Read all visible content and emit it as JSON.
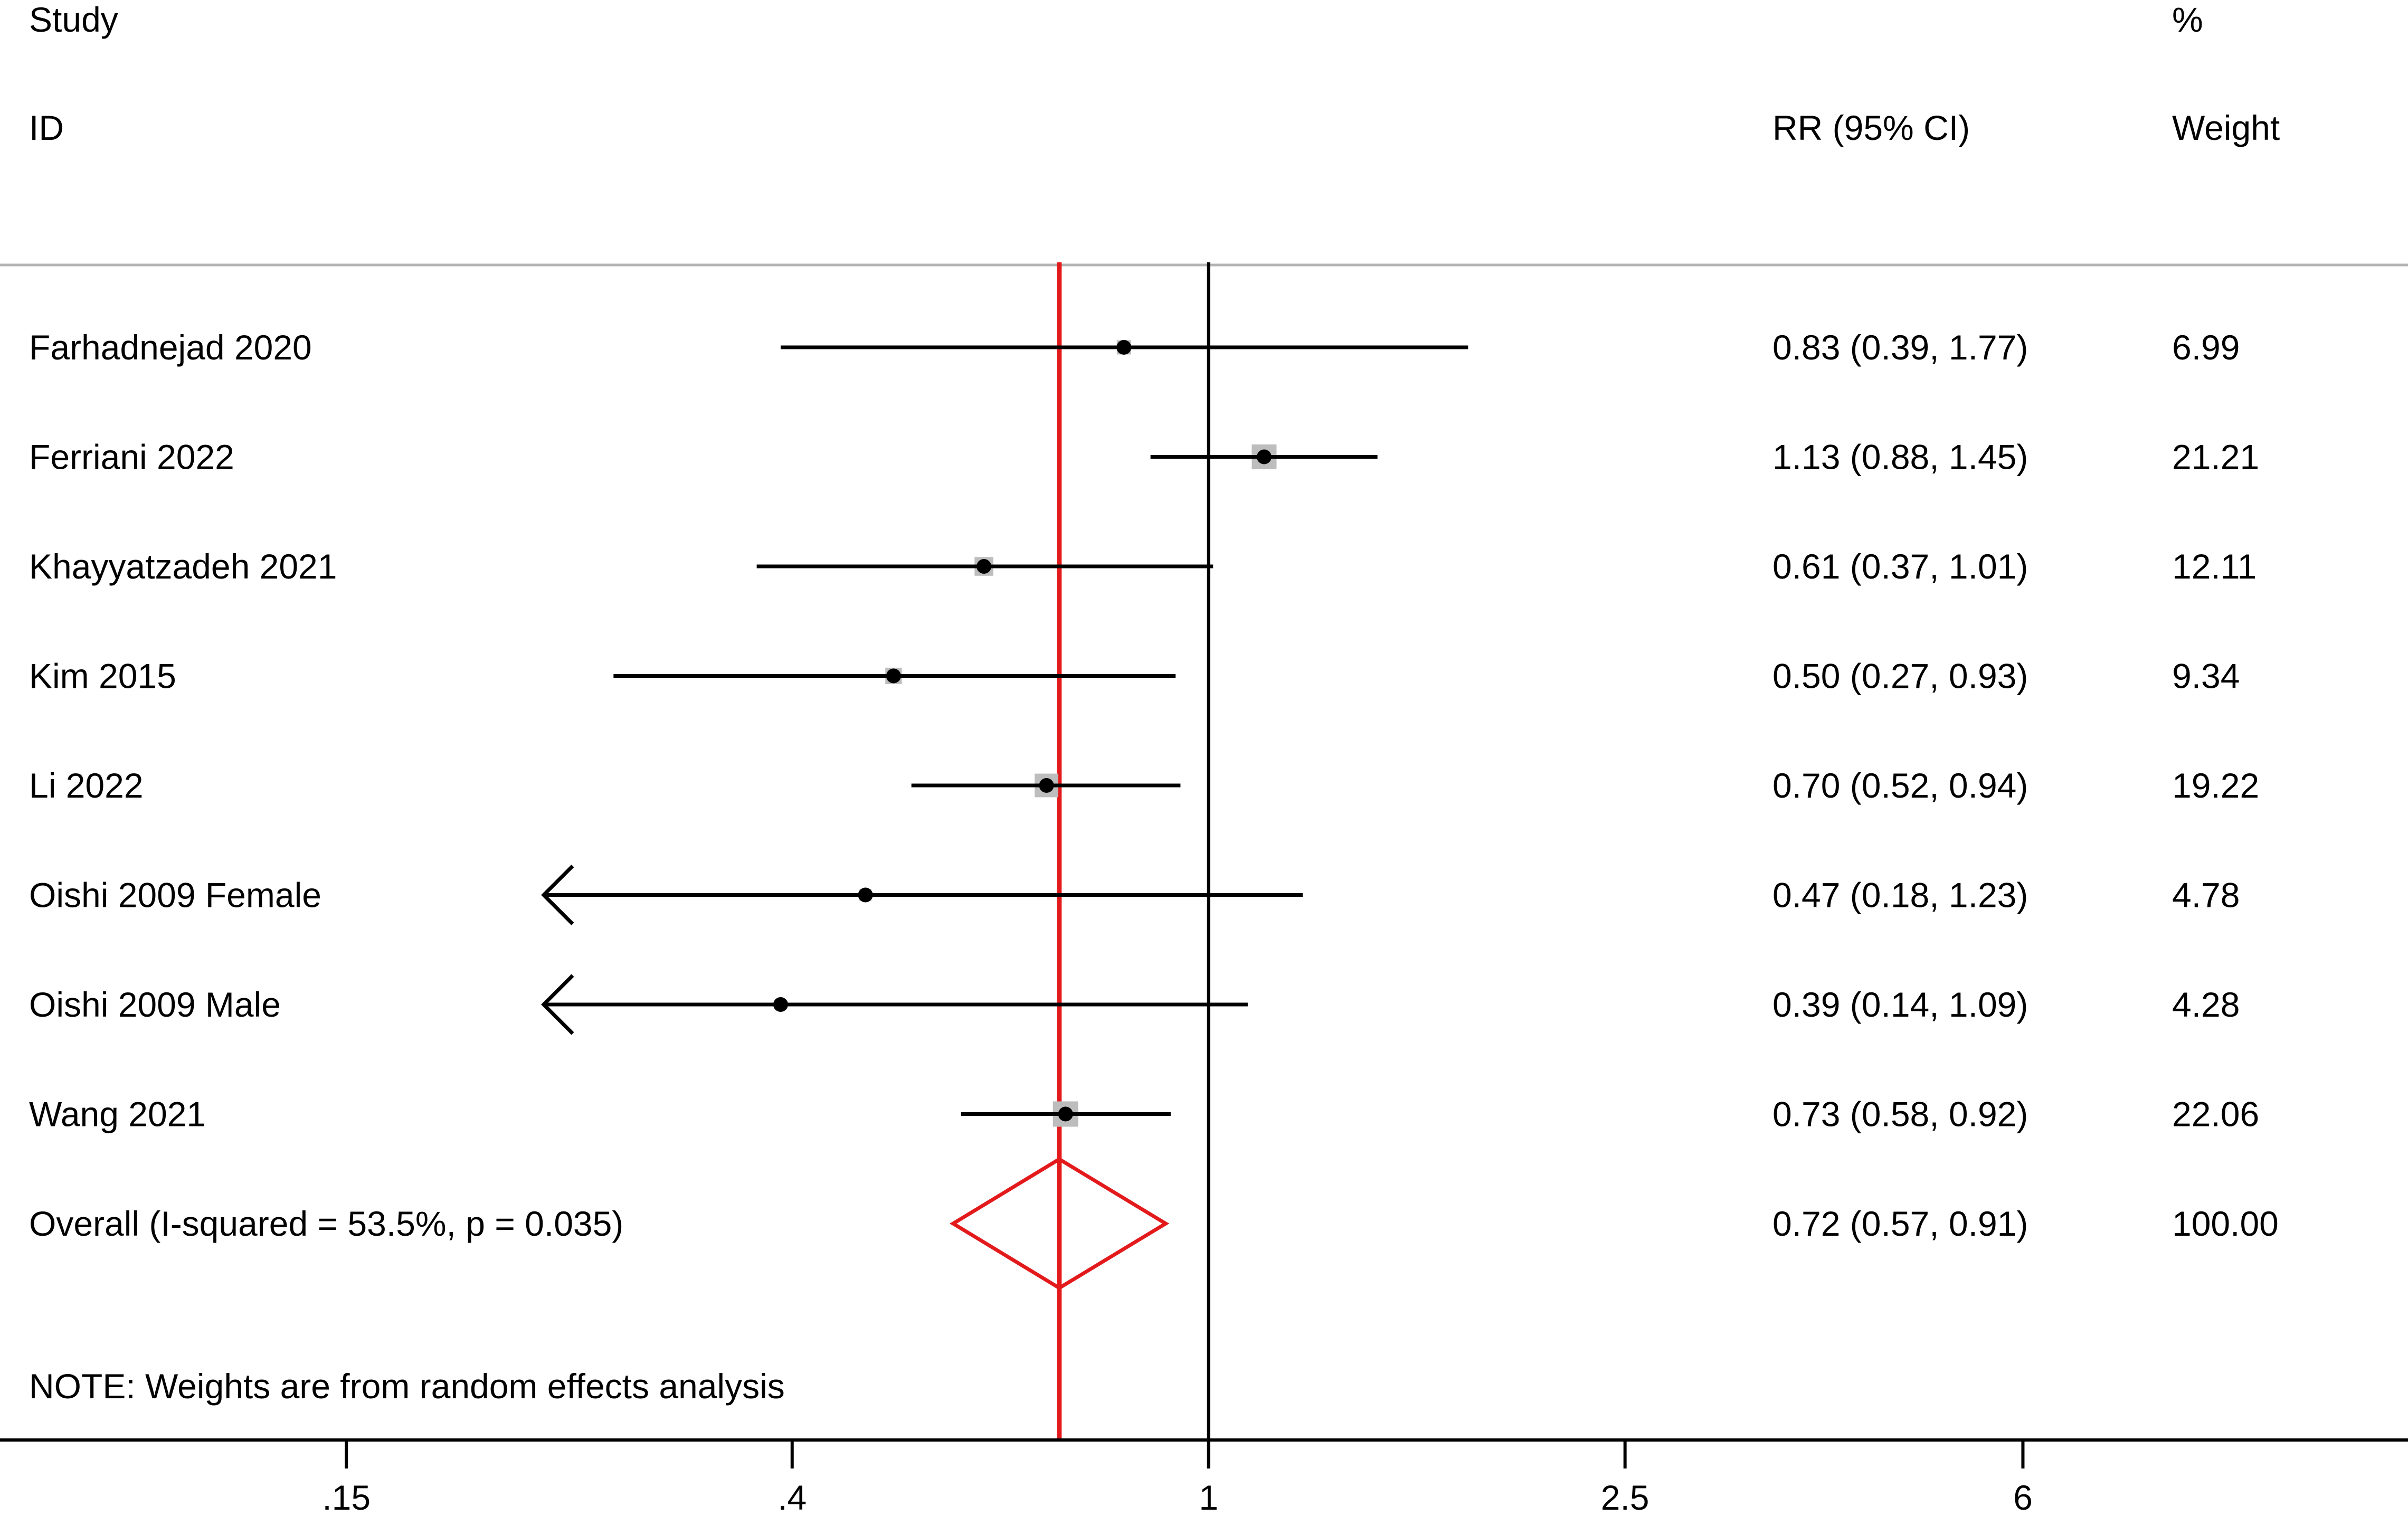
{
  "chart_data": {
    "type": "forest",
    "headers": {
      "study_line1": "Study",
      "study_line2": "ID",
      "effect": "RR (95% CI)",
      "weight_line1": "%",
      "weight_line2": "Weight"
    },
    "studies": [
      {
        "label": "Farhadnejad 2020",
        "rr": 0.83,
        "lo": 0.39,
        "hi": 1.77,
        "ci_text": "0.83 (0.39, 1.77)",
        "weight": 6.99,
        "weight_text": "6.99"
      },
      {
        "label": "Ferriani 2022",
        "rr": 1.13,
        "lo": 0.88,
        "hi": 1.45,
        "ci_text": "1.13 (0.88, 1.45)",
        "weight": 21.21,
        "weight_text": "21.21"
      },
      {
        "label": "Khayyatzadeh 2021",
        "rr": 0.61,
        "lo": 0.37,
        "hi": 1.01,
        "ci_text": "0.61 (0.37, 1.01)",
        "weight": 12.11,
        "weight_text": "12.11"
      },
      {
        "label": "Kim 2015",
        "rr": 0.5,
        "lo": 0.27,
        "hi": 0.93,
        "ci_text": "0.50 (0.27, 0.93)",
        "weight": 9.34,
        "weight_text": "9.34"
      },
      {
        "label": "Li 2022",
        "rr": 0.7,
        "lo": 0.52,
        "hi": 0.94,
        "ci_text": "0.70 (0.52, 0.94)",
        "weight": 19.22,
        "weight_text": "19.22"
      },
      {
        "label": "Oishi 2009 Female",
        "rr": 0.47,
        "lo": 0.18,
        "hi": 1.23,
        "ci_text": "0.47 (0.18, 1.23)",
        "weight": 4.78,
        "weight_text": "4.78"
      },
      {
        "label": "Oishi 2009 Male",
        "rr": 0.39,
        "lo": 0.14,
        "hi": 1.09,
        "ci_text": "0.39 (0.14, 1.09)",
        "weight": 4.28,
        "weight_text": "4.28"
      },
      {
        "label": "Wang 2021",
        "rr": 0.73,
        "lo": 0.58,
        "hi": 0.92,
        "ci_text": "0.73 (0.58, 0.92)",
        "weight": 22.06,
        "weight_text": "22.06"
      }
    ],
    "overall": {
      "label": "Overall  (I-squared = 53.5%, p = 0.035)",
      "rr": 0.72,
      "lo": 0.57,
      "hi": 0.91,
      "ci_text": "0.72 (0.57, 0.91)",
      "weight_text": "100.00"
    },
    "note": "NOTE: Weights are from random effects analysis",
    "x_scale": "log",
    "xlim": [
      0.07,
      14
    ],
    "xticks": [
      0.15,
      0.4,
      1,
      2.5,
      6
    ],
    "xtick_labels": [
      ".15",
      ".4",
      "1",
      "2.5",
      "6"
    ],
    "null_value": 1,
    "colors": {
      "overall": "#e31a1c",
      "ci_line": "#000000",
      "weight_box": "#bdbdbd",
      "separator": "#b3b3b3"
    }
  }
}
